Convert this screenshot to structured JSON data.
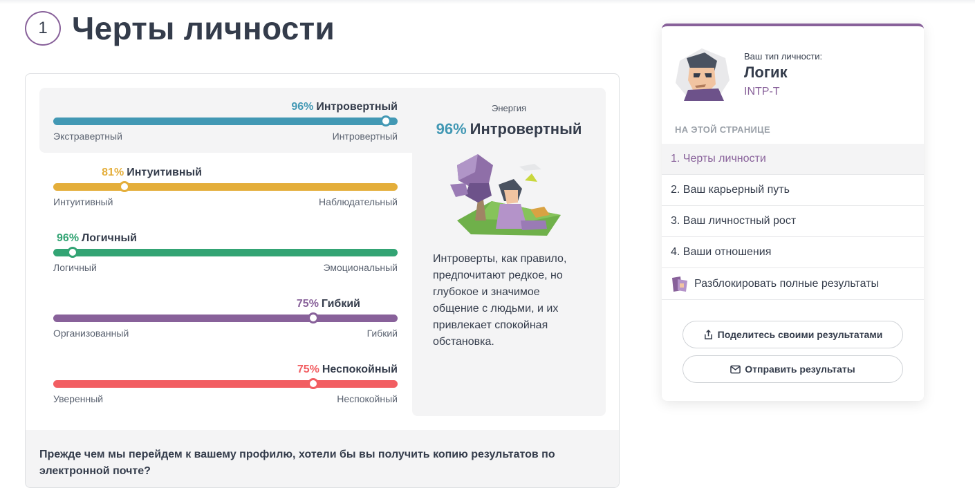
{
  "section": {
    "number": "1",
    "title": "Черты личности"
  },
  "traits": [
    {
      "pct": "96%",
      "name": "Интровертный",
      "left": "Экстравертный",
      "right": "Интровертный",
      "value": 96,
      "position": 0.965,
      "color": "#4298b4",
      "side": "right"
    },
    {
      "pct": "81%",
      "name": "Интуитивный",
      "left": "Интуитивный",
      "right": "Наблюдательный",
      "value": 81,
      "position": 0.207,
      "color": "#e4ae3a",
      "side": "left"
    },
    {
      "pct": "96%",
      "name": "Логичный",
      "left": "Логичный",
      "right": "Эмоциональный",
      "value": 96,
      "position": 0.056,
      "color": "#33a474",
      "side": "left"
    },
    {
      "pct": "75%",
      "name": "Гибкий",
      "left": "Организованный",
      "right": "Гибкий",
      "value": 75,
      "position": 0.755,
      "color": "#88619a",
      "side": "right"
    },
    {
      "pct": "75%",
      "name": "Неспокойный",
      "left": "Уверенный",
      "right": "Неспокойный",
      "value": 75,
      "position": 0.755,
      "color": "#f25e62",
      "side": "right"
    }
  ],
  "detail": {
    "category": "Энергия",
    "pct": "96%",
    "name": "Интровертный",
    "illustration": "introvert-illustration",
    "text": "Интроверты, как правило, предпочитают редкое, но глубокое и значимое общение с людьми, и их привлекает спокойная обстановка."
  },
  "footer": {
    "text": "Прежде чем мы перейдем к вашему профилю, хотели бы вы получить копию результатов по электронной почте?"
  },
  "sidebar": {
    "caption": "Ваш тип личности:",
    "type_name": "Логик",
    "type_code": "INTP-T",
    "toc_caption": "НА ЭТОЙ СТРАНИЦЕ",
    "toc": [
      {
        "label": "1. Черты личности",
        "active": true
      },
      {
        "label": "2. Ваш карьерный путь"
      },
      {
        "label": "3. Ваш личностный рост"
      },
      {
        "label": "4. Ваши отношения"
      },
      {
        "label": "Разблокировать полные результаты",
        "icon": "unlock-icon"
      }
    ],
    "share_label": "Поделитесь своими результатами",
    "email_label": "Отправить результаты"
  },
  "accent": "#88619a"
}
